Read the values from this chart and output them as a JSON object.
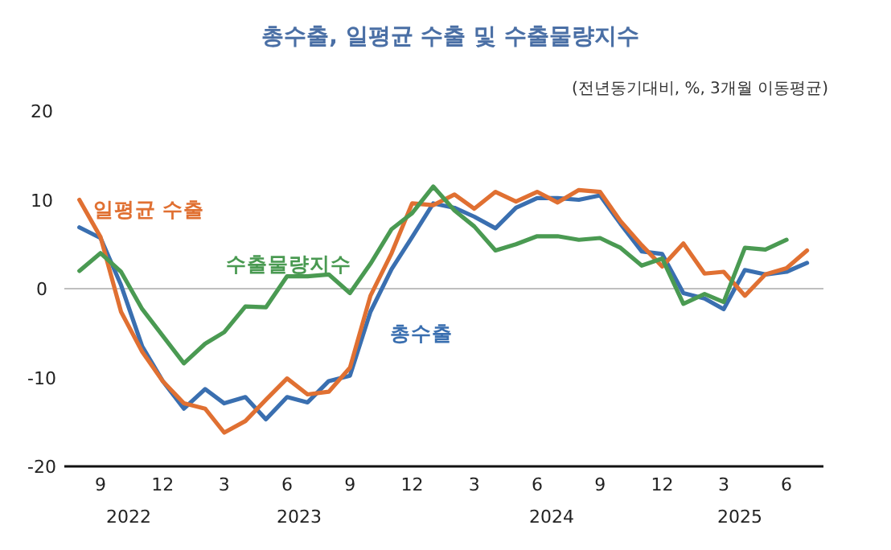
{
  "chart_data": {
    "type": "line",
    "title": "총수출, 일평균 수출 및 수출물량지수",
    "subtitle": "(전년동기대비, %, 3개월 이동평균)",
    "x": [
      "2022-08",
      "2022-09",
      "2022-10",
      "2022-11",
      "2022-12",
      "2023-01",
      "2023-02",
      "2023-03",
      "2023-04",
      "2023-05",
      "2023-06",
      "2023-07",
      "2023-08",
      "2023-09",
      "2023-10",
      "2023-11",
      "2023-12",
      "2024-01",
      "2024-02",
      "2024-03",
      "2024-04",
      "2024-05",
      "2024-06",
      "2024-07",
      "2024-08",
      "2024-09",
      "2024-10",
      "2024-11",
      "2024-12",
      "2025-01",
      "2025-02",
      "2025-03",
      "2025-04",
      "2025-05",
      "2025-06",
      "2025-07"
    ],
    "series": [
      {
        "name": "총수출",
        "color": "#3a6fb0",
        "values": [
          6.9,
          5.7,
          0.4,
          -6.5,
          -10.4,
          -13.5,
          -11.3,
          -12.9,
          -12.2,
          -14.7,
          -12.2,
          -12.8,
          -10.4,
          -9.8,
          -2.6,
          2.2,
          5.8,
          9.6,
          9.1,
          8.1,
          6.8,
          9.1,
          10.2,
          10.2,
          10.0,
          10.5,
          7.3,
          4.2,
          3.9,
          -0.5,
          -1.1,
          -2.3,
          2.1,
          1.6,
          1.9,
          2.9
        ]
      },
      {
        "name": "일평균 수출",
        "color": "#e07032",
        "values": [
          10.0,
          5.8,
          -2.6,
          -7.1,
          -10.4,
          -12.9,
          -13.5,
          -16.2,
          -14.9,
          -12.5,
          -10.1,
          -11.9,
          -11.6,
          -8.9,
          -0.8,
          4.0,
          9.6,
          9.4,
          10.6,
          9.0,
          10.9,
          9.8,
          10.9,
          9.7,
          11.1,
          10.9,
          7.6,
          4.9,
          2.5,
          5.1,
          1.7,
          1.9,
          -0.8,
          1.6,
          2.3,
          4.3
        ]
      },
      {
        "name": "수출물량지수",
        "color": "#4a9a52",
        "values": [
          2.0,
          4.0,
          1.9,
          -2.3,
          -5.3,
          -8.4,
          -6.2,
          -4.9,
          -2.0,
          -2.1,
          1.4,
          1.4,
          1.6,
          -0.5,
          2.8,
          6.7,
          8.5,
          11.5,
          8.8,
          7.0,
          4.3,
          5.0,
          5.9,
          5.9,
          5.5,
          5.7,
          4.6,
          2.6,
          3.4,
          -1.7,
          -0.6,
          -1.5,
          4.6,
          4.4,
          5.5,
          null
        ]
      }
    ],
    "xlim": [
      "2022-07-10",
      "2025-07-25"
    ],
    "xticks": [
      {
        "value": "2022-09",
        "label": "9"
      },
      {
        "value": "2022-12",
        "label": "12"
      },
      {
        "value": "2023-03",
        "label": "3"
      },
      {
        "value": "2023-06",
        "label": "6"
      },
      {
        "value": "2023-09",
        "label": "9"
      },
      {
        "value": "2023-12",
        "label": "12"
      },
      {
        "value": "2024-03",
        "label": "3"
      },
      {
        "value": "2024-06",
        "label": "6"
      },
      {
        "value": "2024-09",
        "label": "9"
      },
      {
        "value": "2024-12",
        "label": "12"
      },
      {
        "value": "2025-03",
        "label": "3"
      },
      {
        "value": "2025-06",
        "label": "6"
      }
    ],
    "ylim": [
      -20,
      20
    ],
    "yticks": [
      -20,
      -10,
      0,
      10,
      20
    ],
    "ref_lines": [
      {
        "axis": "y",
        "value": 0,
        "color": "#bfbfbf"
      }
    ],
    "annotations": [
      "2022",
      "2023",
      "2024",
      "2025"
    ],
    "grid": false,
    "legend": false,
    "marker": "none",
    "line_style": "solid"
  }
}
